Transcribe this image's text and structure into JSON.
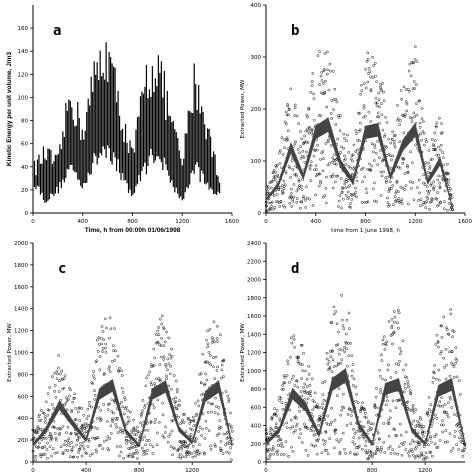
{
  "chart_data": [
    {
      "panel": "a",
      "type": "line",
      "title": "",
      "xlabel": "Time, h from 00:00h  01/06/1998",
      "ylabel": "Kinetic Energy per unit volume, J/m3",
      "xlim": [
        0,
        1600
      ],
      "ylim": [
        0,
        180
      ],
      "xticks": [
        0,
        400,
        800,
        1200,
        1600
      ],
      "yticks": [
        0,
        20,
        40,
        60,
        80,
        100,
        120,
        140,
        160
      ],
      "x": [
        0,
        100,
        200,
        300,
        400,
        500,
        600,
        700,
        800,
        900,
        1000,
        1100,
        1200,
        1300,
        1400,
        1500
      ],
      "series": [
        {
          "values_upper": [
            40,
            55,
            45,
            110,
            75,
            128,
            150,
            95,
            50,
            120,
            140,
            90,
            45,
            125,
            80,
            30
          ]
        },
        {
          "values_lower": [
            30,
            10,
            20,
            40,
            25,
            45,
            60,
            35,
            15,
            40,
            55,
            30,
            10,
            40,
            25,
            15
          ]
        }
      ]
    },
    {
      "panel": "b",
      "type": "scatter",
      "title": "",
      "xlabel": "time from 1 June 1998, h",
      "ylabel": "Extracted Power, MW",
      "xlim": [
        0,
        1600
      ],
      "ylim": [
        0,
        400
      ],
      "xticks": [
        0,
        400,
        800,
        1200,
        1600
      ],
      "yticks": [
        0,
        100,
        200,
        300,
        400
      ],
      "mean": {
        "x": [
          0,
          100,
          200,
          300,
          400,
          500,
          600,
          700,
          800,
          900,
          1000,
          1100,
          1200,
          1300,
          1400,
          1500
        ],
        "values": [
          25,
          55,
          125,
          70,
          155,
          170,
          95,
          60,
          155,
          160,
          70,
          130,
          160,
          60,
          100,
          10
        ]
      }
    },
    {
      "panel": "c",
      "type": "scatter",
      "title": "",
      "xlabel": "time from 1 June 1998, h",
      "ylabel": "Extracted Power, MW",
      "xlim": [
        0,
        1500
      ],
      "ylim": [
        0,
        2000
      ],
      "xticks": [
        0,
        400,
        800,
        1200,
        1600
      ],
      "yticks": [
        0,
        200,
        400,
        600,
        800,
        1000,
        1200,
        1400,
        1600,
        1800,
        2000
      ],
      "mean": {
        "x": [
          0,
          100,
          200,
          300,
          400,
          500,
          600,
          700,
          800,
          900,
          1000,
          1100,
          1200,
          1300,
          1400,
          1500
        ],
        "values": [
          150,
          300,
          520,
          350,
          200,
          620,
          700,
          280,
          150,
          620,
          690,
          300,
          180,
          600,
          690,
          160
        ]
      }
    },
    {
      "panel": "d",
      "type": "scatter",
      "title": "",
      "xlabel": "time from 1 June 1998, h",
      "ylabel": "Extracted Power, MW",
      "xlim": [
        0,
        1500
      ],
      "ylim": [
        0,
        2400
      ],
      "xticks": [
        0,
        800,
        1200
      ],
      "yticks": [
        0,
        200,
        400,
        600,
        800,
        1000,
        1200,
        1400,
        1600,
        1800,
        2000,
        2200,
        2400
      ],
      "mean": {
        "x": [
          0,
          100,
          200,
          300,
          400,
          500,
          600,
          700,
          800,
          900,
          1000,
          1100,
          1200,
          1300,
          1400,
          1500
        ],
        "values": [
          200,
          350,
          750,
          600,
          300,
          850,
          950,
          400,
          200,
          800,
          850,
          350,
          200,
          780,
          850,
          200
        ]
      }
    }
  ]
}
